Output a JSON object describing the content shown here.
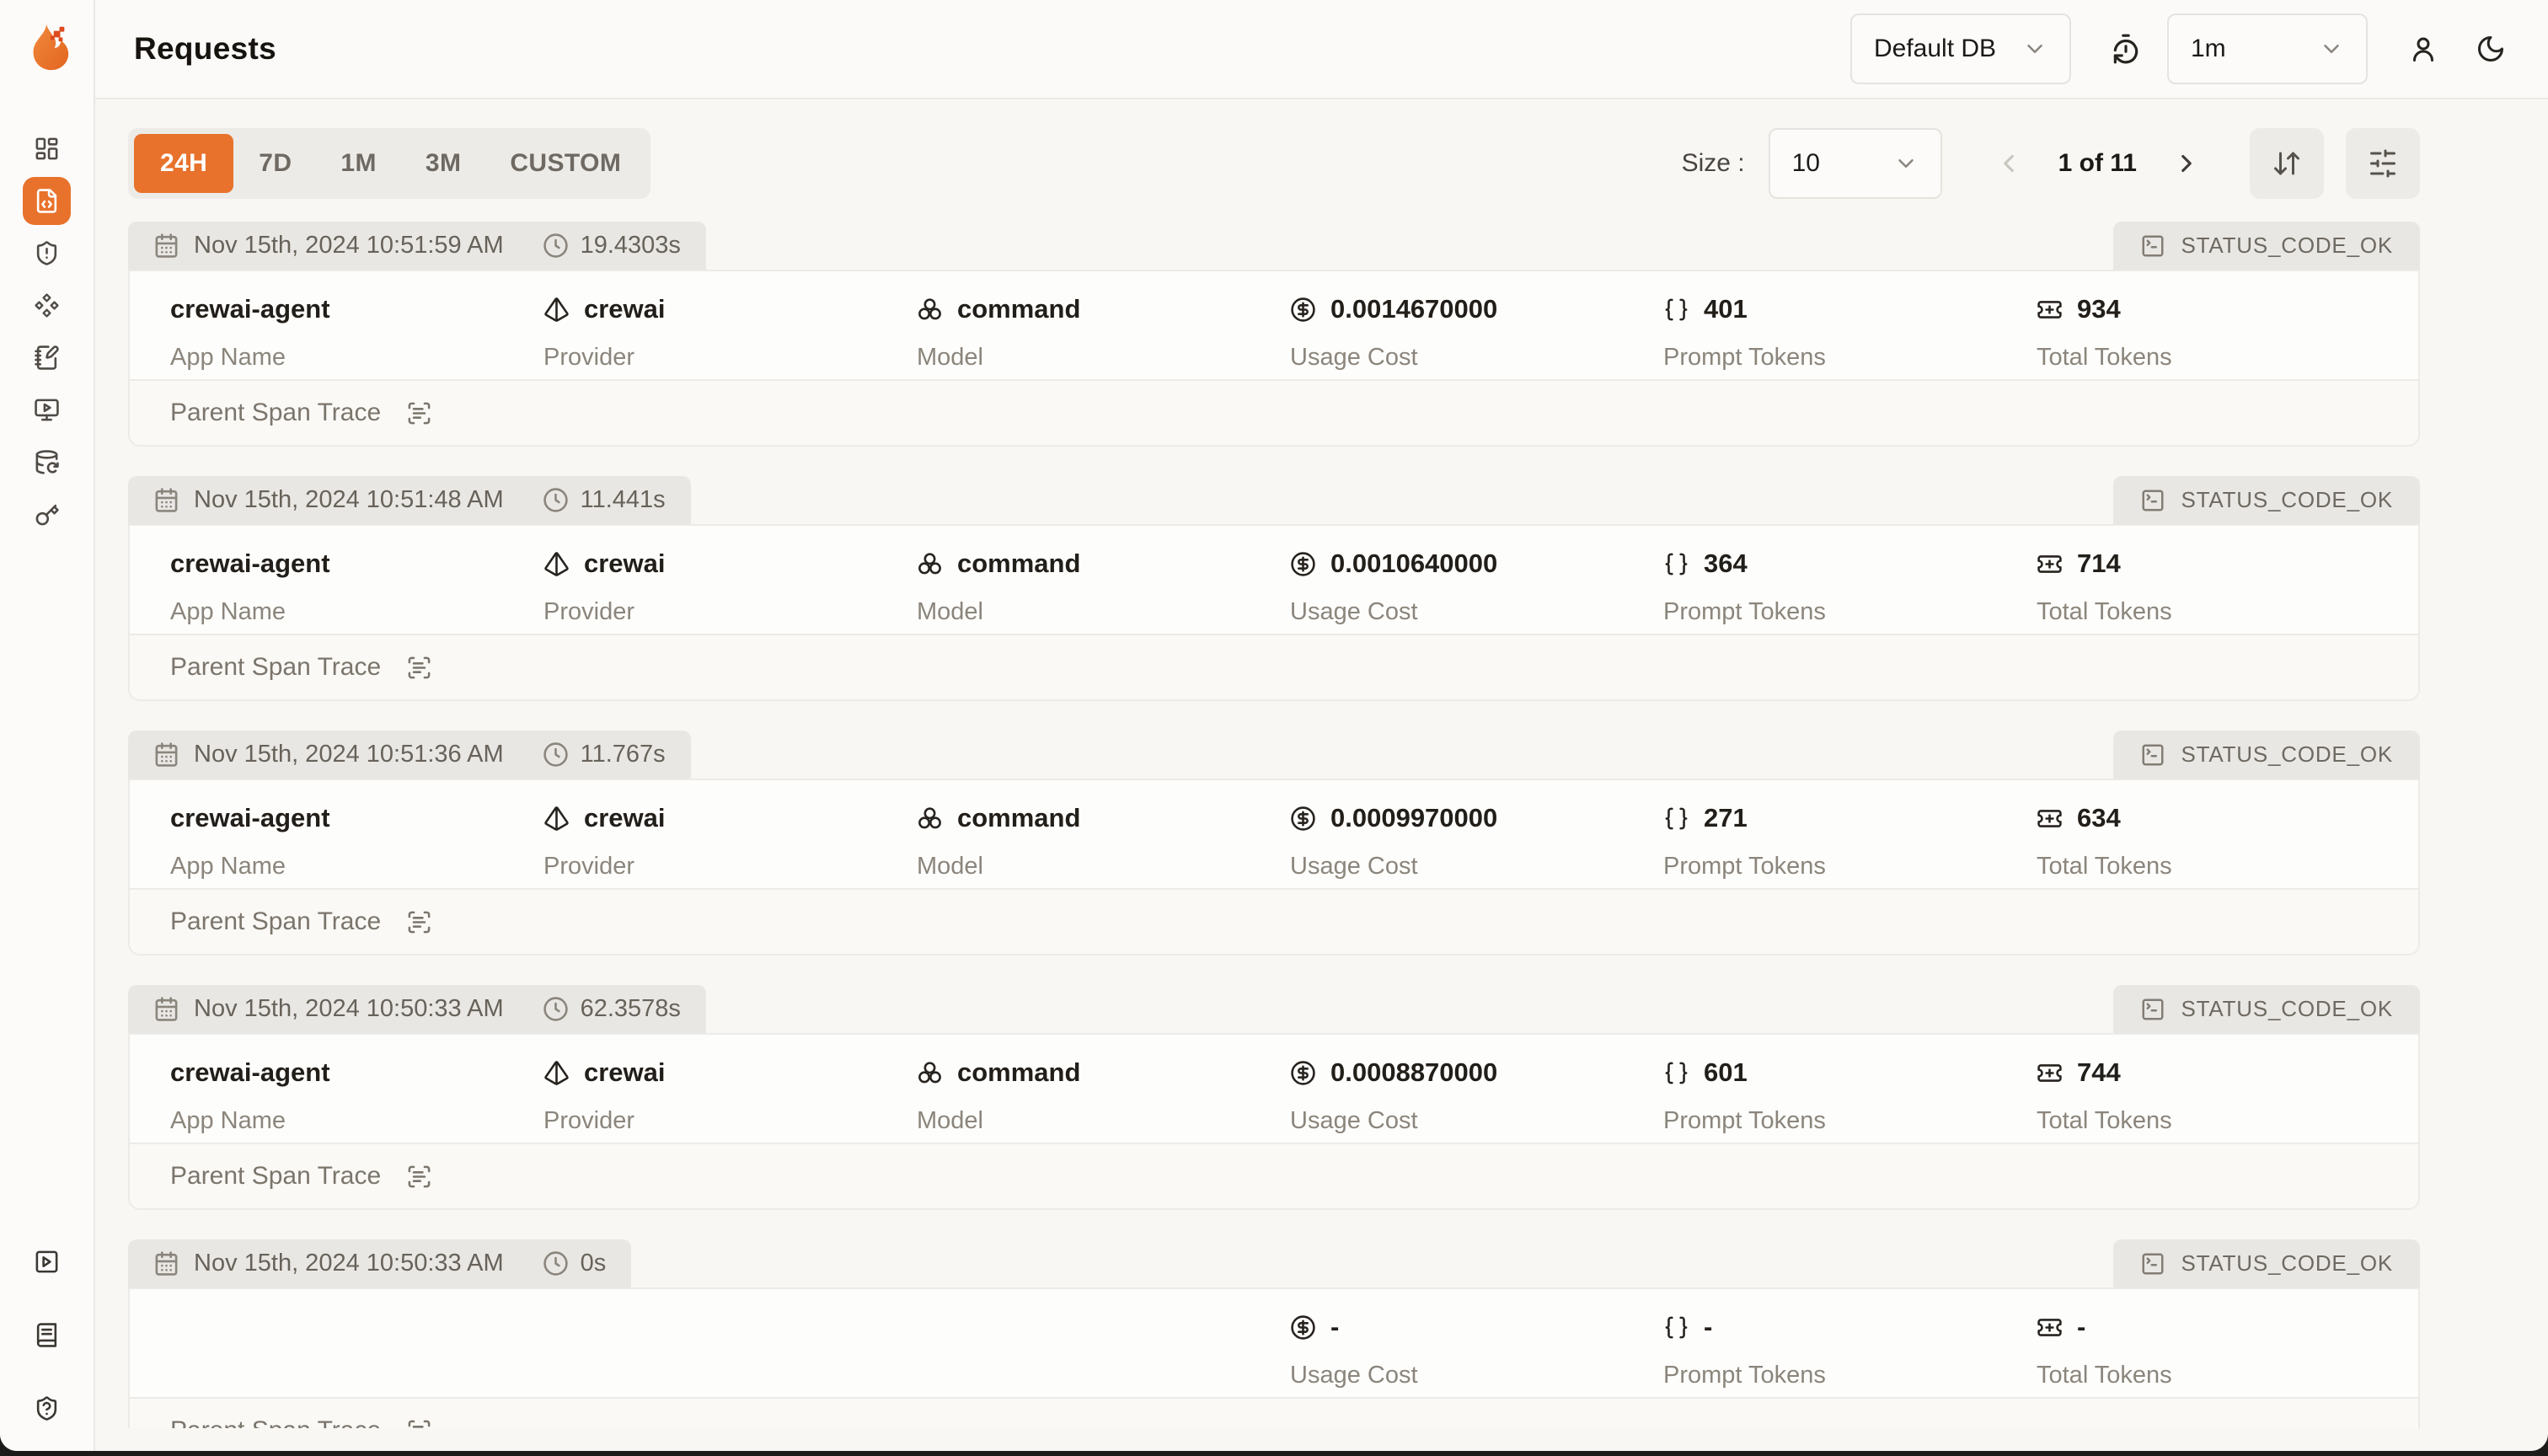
{
  "colors": {
    "accent": "#E8722C",
    "tab_gray": "#E9E7E3"
  },
  "header": {
    "title": "Requests",
    "database_selector_value": "Default DB",
    "refresh_interval_value": "1m"
  },
  "toolbar": {
    "time_ranges": [
      "24H",
      "7D",
      "1M",
      "3M",
      "CUSTOM"
    ],
    "active_time_range": "24H",
    "size_label": "Size :",
    "size_value": "10",
    "page_indicator": "1 of 11"
  },
  "field_labels": {
    "app_name": "App Name",
    "provider": "Provider",
    "model": "Model",
    "usage_cost": "Usage Cost",
    "prompt_tokens": "Prompt Tokens",
    "total_tokens": "Total Tokens"
  },
  "trace_label": "Parent Span Trace",
  "requests": [
    {
      "timestamp": "Nov 15th, 2024 10:51:59 AM",
      "duration": "19.4303s",
      "status": "STATUS_CODE_OK",
      "app_name": "crewai-agent",
      "provider": "crewai",
      "model": "command",
      "usage_cost": "0.0014670000",
      "prompt_tokens": "401",
      "total_tokens": "934"
    },
    {
      "timestamp": "Nov 15th, 2024 10:51:48 AM",
      "duration": "11.441s",
      "status": "STATUS_CODE_OK",
      "app_name": "crewai-agent",
      "provider": "crewai",
      "model": "command",
      "usage_cost": "0.0010640000",
      "prompt_tokens": "364",
      "total_tokens": "714"
    },
    {
      "timestamp": "Nov 15th, 2024 10:51:36 AM",
      "duration": "11.767s",
      "status": "STATUS_CODE_OK",
      "app_name": "crewai-agent",
      "provider": "crewai",
      "model": "command",
      "usage_cost": "0.0009970000",
      "prompt_tokens": "271",
      "total_tokens": "634"
    },
    {
      "timestamp": "Nov 15th, 2024 10:50:33 AM",
      "duration": "62.3578s",
      "status": "STATUS_CODE_OK",
      "app_name": "crewai-agent",
      "provider": "crewai",
      "model": "command",
      "usage_cost": "0.0008870000",
      "prompt_tokens": "601",
      "total_tokens": "744"
    },
    {
      "timestamp": "Nov 15th, 2024 10:50:33 AM",
      "duration": "0s",
      "status": "STATUS_CODE_OK",
      "app_name": "",
      "provider": "",
      "model": "",
      "usage_cost": "-",
      "prompt_tokens": "-",
      "total_tokens": "-"
    }
  ],
  "sidebar_icons": [
    "layout-dashboard",
    "file-code",
    "shield-alert",
    "diamond-shapes",
    "notebook-pen",
    "monitor-play",
    "database-backup",
    "key",
    "square-play",
    "book-text",
    "shield-question"
  ]
}
